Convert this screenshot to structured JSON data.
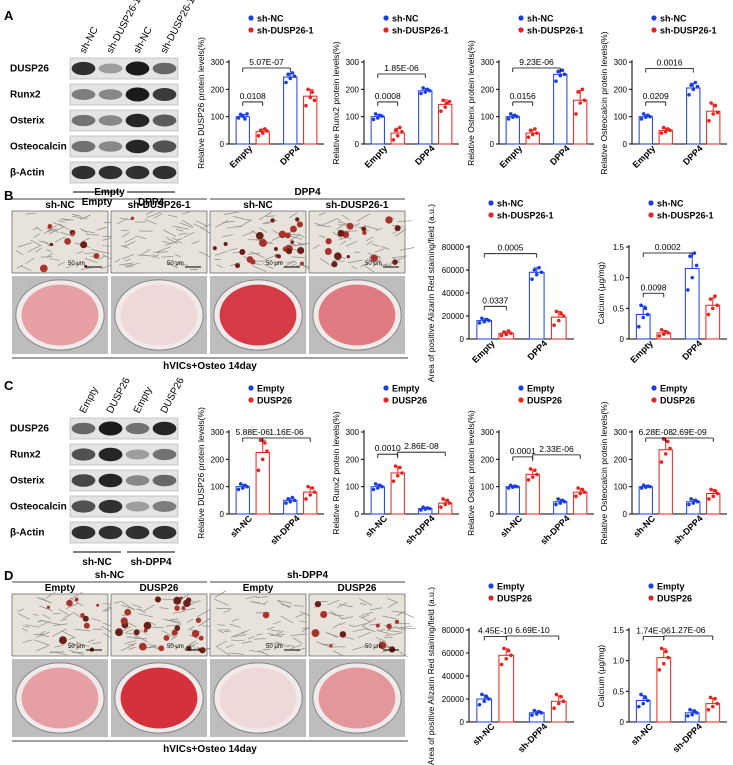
{
  "colors": {
    "blue": "#1a3ee6",
    "red": "#e8221e",
    "band": "#151515",
    "stain": "#c8323c"
  },
  "panels": {
    "A": {
      "letter": "A",
      "blot": {
        "lanes": [
          "sh-NC",
          "sh-DUSP26-1",
          "sh-NC",
          "sh-DUSP26-1"
        ],
        "rows": [
          "DUSP26",
          "Runx2",
          "Osterix",
          "Osteocalcin",
          "β-Actin"
        ],
        "groups": [
          "Empty",
          "DPP4"
        ],
        "intensity": [
          [
            0.85,
            0.35,
            0.95,
            0.6
          ],
          [
            0.5,
            0.45,
            0.95,
            0.8
          ],
          [
            0.55,
            0.45,
            0.9,
            0.65
          ],
          [
            0.55,
            0.45,
            0.9,
            0.7
          ],
          [
            0.85,
            0.85,
            0.85,
            0.85
          ]
        ]
      }
    },
    "B": {
      "letter": "B",
      "groups": [
        "Empty",
        "DPP4"
      ],
      "conditions": [
        "sh-NC",
        "sh-DUSP26-1",
        "sh-NC",
        "sh-DUSP26-1"
      ],
      "scale_bar": "50 μm",
      "caption": "hVICs+Osteo 14day",
      "stain_level": [
        0.35,
        0.05,
        0.9,
        0.55
      ]
    },
    "C": {
      "letter": "C",
      "blot": {
        "lanes": [
          "Empty",
          "DUSP26",
          "Empty",
          "DUSP26"
        ],
        "rows": [
          "DUSP26",
          "Runx2",
          "Osterix",
          "Osteocalcin",
          "β-Actin"
        ],
        "groups": [
          "sh-NC",
          "sh-DPP4"
        ],
        "intensity": [
          [
            0.6,
            0.95,
            0.55,
            0.9
          ],
          [
            0.7,
            0.9,
            0.35,
            0.55
          ],
          [
            0.75,
            0.9,
            0.45,
            0.6
          ],
          [
            0.7,
            0.85,
            0.35,
            0.5
          ],
          [
            0.85,
            0.85,
            0.85,
            0.85
          ]
        ]
      }
    },
    "D": {
      "letter": "D",
      "groups": [
        "sh-NC",
        "sh-DPP4"
      ],
      "conditions": [
        "Empty",
        "DUSP26",
        "Empty",
        "DUSP26"
      ],
      "scale_bar": "50 μm",
      "caption": "hVICs+Osteo 14day",
      "stain_level": [
        0.35,
        0.95,
        0.05,
        0.4
      ]
    }
  },
  "chart_data": [
    {
      "id": "A1",
      "type": "bar",
      "ylabel": "Relative DUSP26 protein levels(%)",
      "categories": [
        "Empty",
        "DPP4"
      ],
      "legend": [
        "sh-NC",
        "sh-DUSP26-1"
      ],
      "ylim": [
        0,
        300
      ],
      "yticks": [
        0,
        100,
        200,
        300
      ],
      "series": [
        {
          "name": "sh-NC",
          "values": [
            100,
            245
          ],
          "points": [
            [
              95,
              108,
              102,
              92,
              110
            ],
            [
              225,
              255,
              240,
              260,
              248
            ]
          ]
        },
        {
          "name": "sh-DUSP26-1",
          "values": [
            45,
            175
          ],
          "points": [
            [
              30,
              50,
              40,
              55,
              48
            ],
            [
              140,
              200,
              170,
              190,
              160
            ]
          ]
        }
      ],
      "annotations": [
        {
          "text": "0.0108",
          "between": "within-0"
        },
        {
          "text": "5.07E-07",
          "between": "across-0"
        }
      ]
    },
    {
      "id": "A2",
      "type": "bar",
      "ylabel": "Relative Runx2 protein levels(%)",
      "categories": [
        "Empty",
        "DPP4"
      ],
      "legend": [
        "sh-NC",
        "sh-DUSP26-1"
      ],
      "ylim": [
        0,
        300
      ],
      "yticks": [
        0,
        100,
        200,
        300
      ],
      "series": [
        {
          "name": "sh-NC",
          "values": [
            100,
            195
          ],
          "points": [
            [
              90,
              110,
              95,
              105,
              102
            ],
            [
              185,
              205,
              190,
              200,
              195
            ]
          ]
        },
        {
          "name": "sh-DUSP26-1",
          "values": [
            40,
            145
          ],
          "points": [
            [
              15,
              50,
              30,
              60,
              45
            ],
            [
              120,
              160,
              135,
              150,
              155
            ]
          ]
        }
      ],
      "annotations": [
        {
          "text": "0.0008",
          "between": "within-0"
        },
        {
          "text": "1.85E-06",
          "between": "across-0"
        }
      ]
    },
    {
      "id": "A3",
      "type": "bar",
      "ylabel": "Relative Osterix protein levels(%)",
      "categories": [
        "Empty",
        "DPP4"
      ],
      "legend": [
        "sh-NC",
        "sh-DUSP26-1"
      ],
      "ylim": [
        0,
        300
      ],
      "yticks": [
        0,
        100,
        200,
        300
      ],
      "series": [
        {
          "name": "sh-NC",
          "values": [
            100,
            255
          ],
          "points": [
            [
              92,
              110,
              98,
              105,
              100
            ],
            [
              230,
              265,
              250,
              270,
              255
            ]
          ]
        },
        {
          "name": "sh-DUSP26-1",
          "values": [
            40,
            160
          ],
          "points": [
            [
              25,
              50,
              35,
              55,
              40
            ],
            [
              110,
              190,
              150,
              200,
              160
            ]
          ]
        }
      ],
      "annotations": [
        {
          "text": "0.0156",
          "between": "within-0"
        },
        {
          "text": "9.23E-06",
          "between": "across-0"
        }
      ]
    },
    {
      "id": "A4",
      "type": "bar",
      "ylabel": "Relative Osteocalcin protein levels(%)",
      "categories": [
        "Empty",
        "DPP4"
      ],
      "legend": [
        "sh-NC",
        "sh-DUSP26-1"
      ],
      "ylim": [
        0,
        300
      ],
      "yticks": [
        0,
        100,
        200,
        300
      ],
      "series": [
        {
          "name": "sh-NC",
          "values": [
            100,
            205
          ],
          "points": [
            [
              92,
              110,
              98,
              105,
              100
            ],
            [
              180,
              215,
              200,
              225,
              210
            ]
          ]
        },
        {
          "name": "sh-DUSP26-1",
          "values": [
            50,
            120
          ],
          "points": [
            [
              40,
              60,
              45,
              55,
              50
            ],
            [
              85,
              150,
              110,
              140,
              115
            ]
          ]
        }
      ],
      "annotations": [
        {
          "text": "0.0209",
          "between": "within-0"
        },
        {
          "text": "0.0016",
          "between": "across-0"
        }
      ]
    },
    {
      "id": "B1",
      "type": "bar",
      "ylabel": "Area of positive Alizarin Red staining/field (a.u.)",
      "categories": [
        "Empty",
        "DPP4"
      ],
      "legend": [
        "sh-NC",
        "sh-DUSP26-1"
      ],
      "ylim": [
        0,
        80000
      ],
      "yticks": [
        0,
        20000,
        40000,
        60000,
        80000
      ],
      "series": [
        {
          "name": "sh-NC",
          "values": [
            16000,
            58000
          ],
          "points": [
            [
              14000,
              18000,
              15000,
              17000,
              16000
            ],
            [
              52000,
              60000,
              56000,
              62000,
              58000
            ]
          ]
        },
        {
          "name": "sh-DUSP26-1",
          "values": [
            5000,
            19000
          ],
          "points": [
            [
              3000,
              6000,
              4000,
              7000,
              5000
            ],
            [
              12000,
              24000,
              16000,
              22000,
              20000
            ]
          ]
        }
      ],
      "annotations": [
        {
          "text": "0.0337",
          "between": "within-0"
        },
        {
          "text": "0.0005",
          "between": "across-0"
        }
      ]
    },
    {
      "id": "B2",
      "type": "bar",
      "ylabel": "Calcium (μg/mg)",
      "categories": [
        "Empty",
        "DPP4"
      ],
      "legend": [
        "sh-NC",
        "sh-DUSP26-1"
      ],
      "ylim": [
        0,
        1.5
      ],
      "yticks": [
        0,
        0.5,
        1.0,
        1.5
      ],
      "series": [
        {
          "name": "sh-NC",
          "values": [
            0.4,
            1.15
          ],
          "points": [
            [
              0.2,
              0.55,
              0.35,
              0.5,
              0.4
            ],
            [
              0.8,
              1.35,
              1.0,
              1.4,
              1.2
            ]
          ]
        },
        {
          "name": "sh-DUSP26-1",
          "values": [
            0.1,
            0.55
          ],
          "points": [
            [
              0.05,
              0.15,
              0.08,
              0.12,
              0.1
            ],
            [
              0.4,
              0.65,
              0.5,
              0.7,
              0.55
            ]
          ]
        }
      ],
      "annotations": [
        {
          "text": "0.0098",
          "between": "within-0"
        },
        {
          "text": "0.0002",
          "between": "across-0"
        }
      ]
    },
    {
      "id": "C1",
      "type": "bar",
      "ylabel": "Relative DUSP26 protein levels(%)",
      "categories": [
        "sh-NC",
        "sh-DPP4"
      ],
      "legend": [
        "Empty",
        "DUSP26"
      ],
      "ylim": [
        0,
        300
      ],
      "yticks": [
        0,
        100,
        200,
        300
      ],
      "series": [
        {
          "name": "Empty",
          "values": [
            100,
            50
          ],
          "points": [
            [
              90,
              110,
              95,
              105,
              100
            ],
            [
              40,
              55,
              45,
              60,
              50
            ]
          ]
        },
        {
          "name": "DUSP26",
          "values": [
            225,
            80
          ],
          "points": [
            [
              160,
              270,
              200,
              260,
              230
            ],
            [
              55,
              100,
              70,
              95,
              80
            ]
          ]
        }
      ],
      "annotations": [
        {
          "text": "5.88E-06",
          "between": "within-0"
        },
        {
          "text": "1.16E-06",
          "between": "across-1"
        }
      ]
    },
    {
      "id": "C2",
      "type": "bar",
      "ylabel": "Relative Runx2 protein levels(%)",
      "categories": [
        "sh-NC",
        "sh-DPP4"
      ],
      "legend": [
        "Empty",
        "DUSP26"
      ],
      "ylim": [
        0,
        300
      ],
      "yticks": [
        0,
        100,
        200,
        300
      ],
      "series": [
        {
          "name": "Empty",
          "values": [
            100,
            20
          ],
          "points": [
            [
              90,
              110,
              95,
              105,
              100
            ],
            [
              15,
              25,
              18,
              22,
              20
            ]
          ]
        },
        {
          "name": "DUSP26",
          "values": [
            150,
            40
          ],
          "points": [
            [
              120,
              175,
              140,
              170,
              150
            ],
            [
              25,
              55,
              35,
              50,
              40
            ]
          ]
        }
      ],
      "annotations": [
        {
          "text": "0.0010",
          "between": "within-0"
        },
        {
          "text": "2.86E-08",
          "between": "across-1"
        }
      ]
    },
    {
      "id": "C3",
      "type": "bar",
      "ylabel": "Relative Osterix protein levels(%)",
      "categories": [
        "sh-NC",
        "sh-DPP4"
      ],
      "legend": [
        "Empty",
        "DUSP26"
      ],
      "ylim": [
        0,
        300
      ],
      "yticks": [
        0,
        100,
        200,
        300
      ],
      "series": [
        {
          "name": "Empty",
          "values": [
            100,
            45
          ],
          "points": [
            [
              95,
              105,
              98,
              102,
              100
            ],
            [
              35,
              55,
              40,
              50,
              45
            ]
          ]
        },
        {
          "name": "DUSP26",
          "values": [
            145,
            80
          ],
          "points": [
            [
              125,
              165,
              135,
              160,
              145
            ],
            [
              65,
              95,
              75,
              90,
              80
            ]
          ]
        }
      ],
      "annotations": [
        {
          "text": "0.0001",
          "between": "within-0"
        },
        {
          "text": "2.33E-06",
          "between": "across-1"
        }
      ]
    },
    {
      "id": "C4",
      "type": "bar",
      "ylabel": "Relative Osteocalcin protein levels(%)",
      "categories": [
        "sh-NC",
        "sh-DPP4"
      ],
      "legend": [
        "Empty",
        "DUSP26"
      ],
      "ylim": [
        0,
        300
      ],
      "yticks": [
        0,
        100,
        200,
        300
      ],
      "series": [
        {
          "name": "Empty",
          "values": [
            100,
            45
          ],
          "points": [
            [
              95,
              105,
              98,
              102,
              100
            ],
            [
              35,
              55,
              40,
              50,
              45
            ]
          ]
        },
        {
          "name": "DUSP26",
          "values": [
            235,
            75
          ],
          "points": [
            [
              190,
              275,
              220,
              265,
              240
            ],
            [
              55,
              90,
              65,
              85,
              75
            ]
          ]
        }
      ],
      "annotations": [
        {
          "text": "6.28E-08",
          "between": "within-0"
        },
        {
          "text": "2.69E-09",
          "between": "across-1"
        }
      ]
    },
    {
      "id": "D1",
      "type": "bar",
      "ylabel": "Area of positive Alizarin Red staining/field (a.u.)",
      "categories": [
        "sh-NC",
        "sh-DPP4"
      ],
      "legend": [
        "Empty",
        "DUSP26"
      ],
      "ylim": [
        0,
        80000
      ],
      "yticks": [
        0,
        20000,
        40000,
        60000,
        80000
      ],
      "series": [
        {
          "name": "Empty",
          "values": [
            20000,
            8000
          ],
          "points": [
            [
              15000,
              24000,
              18000,
              22000,
              20000
            ],
            [
              6000,
              10000,
              7000,
              9000,
              8000
            ]
          ]
        },
        {
          "name": "DUSP26",
          "values": [
            58000,
            18000
          ],
          "points": [
            [
              50000,
              64000,
              55000,
              62000,
              58000
            ],
            [
              12000,
              24000,
              16000,
              22000,
              18000
            ]
          ]
        }
      ],
      "annotations": [
        {
          "text": "4.45E-10",
          "between": "within-0"
        },
        {
          "text": "6.69E-10",
          "between": "across-1"
        }
      ]
    },
    {
      "id": "D2",
      "type": "bar",
      "ylabel": "Calcium (μg/mg)",
      "categories": [
        "sh-NC",
        "sh-DPP4"
      ],
      "legend": [
        "Empty",
        "DUSP26"
      ],
      "ylim": [
        0,
        1.5
      ],
      "yticks": [
        0,
        0.5,
        1.0,
        1.5
      ],
      "series": [
        {
          "name": "Empty",
          "values": [
            0.35,
            0.15
          ],
          "points": [
            [
              0.25,
              0.45,
              0.3,
              0.4,
              0.35
            ],
            [
              0.1,
              0.2,
              0.12,
              0.18,
              0.15
            ]
          ]
        },
        {
          "name": "DUSP26",
          "values": [
            1.05,
            0.3
          ],
          "points": [
            [
              0.85,
              1.2,
              0.95,
              1.15,
              1.05
            ],
            [
              0.2,
              0.4,
              0.25,
              0.38,
              0.3
            ]
          ]
        }
      ],
      "annotations": [
        {
          "text": "1.74E-06",
          "between": "within-0"
        },
        {
          "text": "1.27E-06",
          "between": "across-1"
        }
      ]
    }
  ]
}
